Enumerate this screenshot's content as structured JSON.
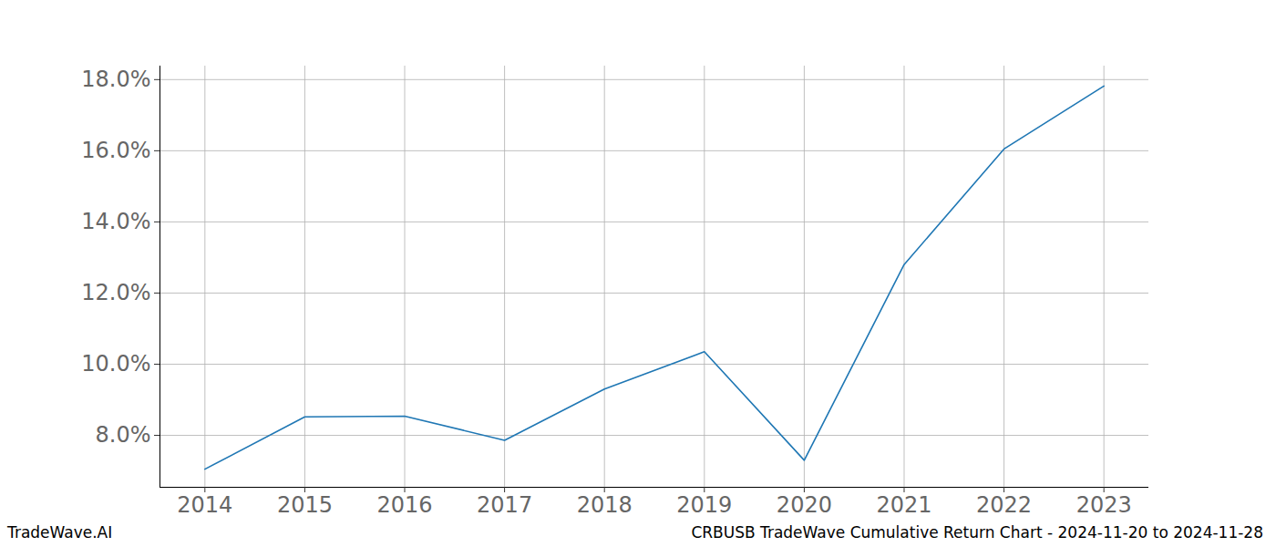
{
  "chart_data": {
    "type": "line",
    "source": "TradeWave.AI",
    "caption": "CRBUSB TradeWave Cumulative Return Chart - 2024-11-20 to 2024-11-28",
    "x": [
      2014,
      2015,
      2016,
      2017,
      2018,
      2019,
      2020,
      2021,
      2022,
      2023
    ],
    "values": [
      7.05,
      8.52,
      8.54,
      7.86,
      9.3,
      10.35,
      7.3,
      12.8,
      16.05,
      17.82
    ],
    "color": "#1f77b4",
    "xlim": [
      2013.55,
      2023.45
    ],
    "xticks": [
      2014,
      2015,
      2016,
      2017,
      2018,
      2019,
      2020,
      2021,
      2022,
      2023
    ],
    "ylim": [
      6.54,
      18.38
    ],
    "yticks": [
      {
        "value": 8,
        "label": "8.0%"
      },
      {
        "value": 10,
        "label": "10.0%"
      },
      {
        "value": 12,
        "label": "12.0%"
      },
      {
        "value": 14,
        "label": "14.0%"
      },
      {
        "value": 16,
        "label": "16.0%"
      },
      {
        "value": 18,
        "label": "18.0%"
      }
    ],
    "grid": true
  }
}
